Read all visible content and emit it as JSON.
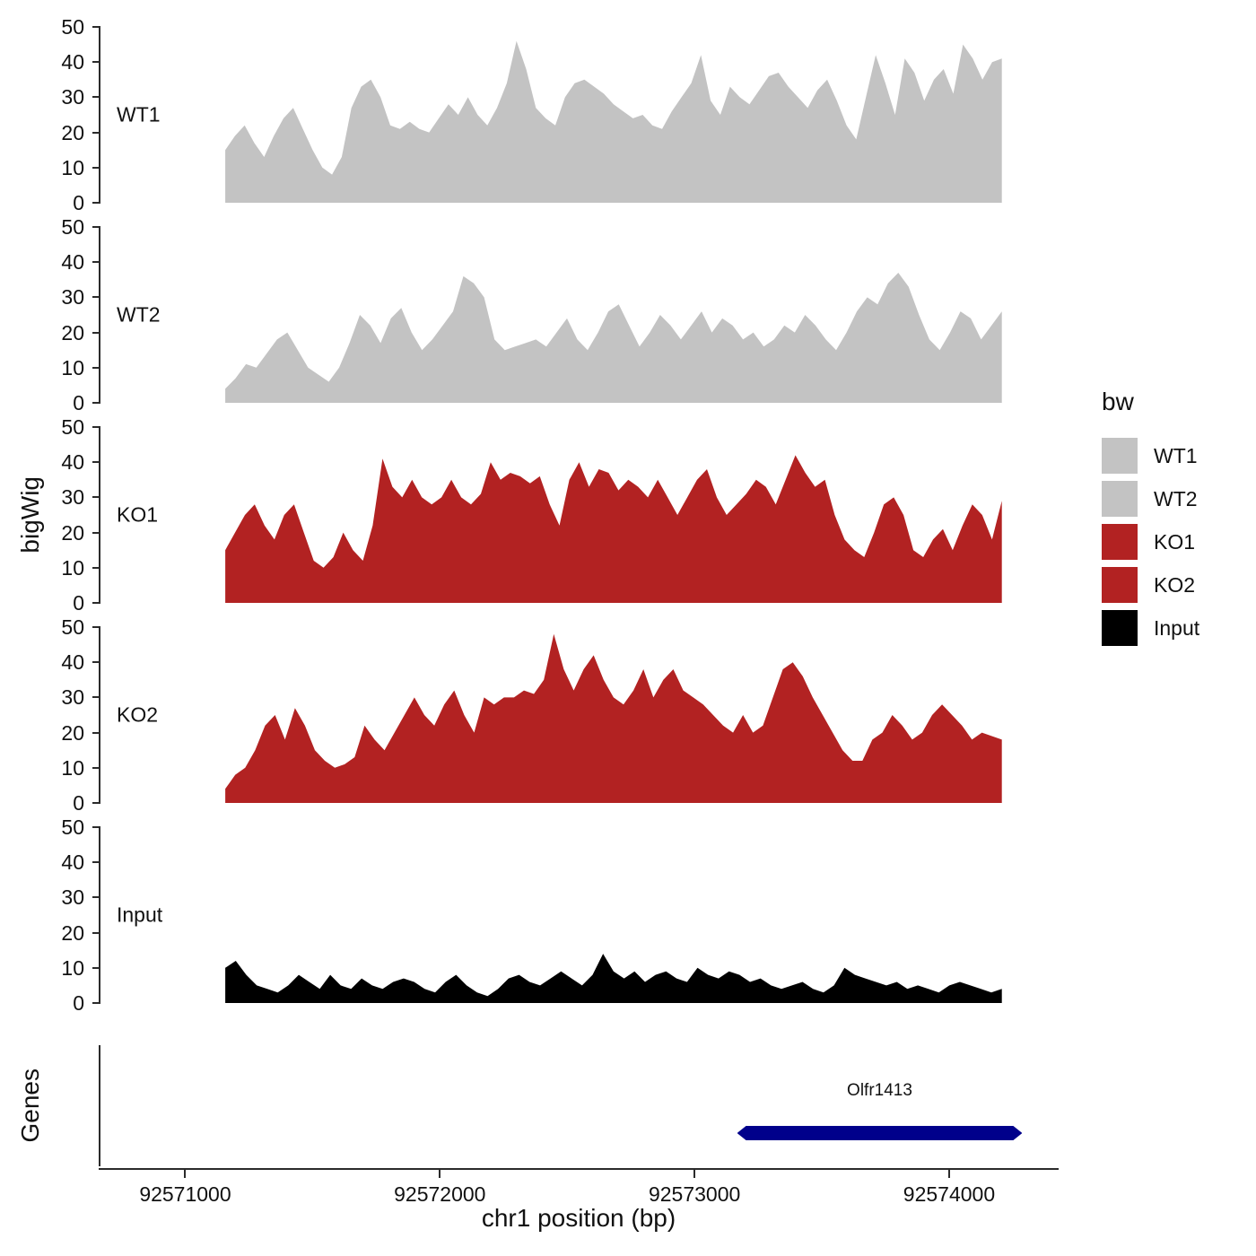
{
  "chart_data": {
    "type": "area",
    "title": "",
    "xlabel": "chr1 position (bp)",
    "ylabel": "bigWig",
    "genes_axis_label": "Genes",
    "y_max": 50,
    "y_ticks": [
      0,
      10,
      20,
      30,
      40,
      50
    ],
    "x_domain": [
      92570660,
      92574430
    ],
    "x_ticks": [
      {
        "bp": 92571000,
        "label": "92571000"
      },
      {
        "bp": 92572000,
        "label": "92572000"
      },
      {
        "bp": 92573000,
        "label": "92573000"
      },
      {
        "bp": 92574000,
        "label": "92574000"
      }
    ],
    "legend": {
      "title": "bw",
      "entries": [
        {
          "label": "WT1",
          "color": "#c3c3c3"
        },
        {
          "label": "WT2",
          "color": "#c3c3c3"
        },
        {
          "label": "KO1",
          "color": "#b22222"
        },
        {
          "label": "KO2",
          "color": "#b22222"
        },
        {
          "label": "Input",
          "color": "#000000"
        }
      ]
    },
    "tracks": [
      {
        "name": "WT1",
        "color": "#c3c3c3",
        "bp_start": 92571150,
        "bp_end": 92574200,
        "values": [
          15,
          19,
          22,
          17,
          13,
          19,
          24,
          27,
          21,
          15,
          10,
          8,
          13,
          27,
          33,
          35,
          30,
          22,
          21,
          23,
          21,
          20,
          24,
          28,
          25,
          30,
          25,
          22,
          27,
          34,
          46,
          38,
          27,
          24,
          22,
          30,
          34,
          35,
          33,
          31,
          28,
          26,
          24,
          25,
          22,
          21,
          26,
          30,
          34,
          42,
          29,
          25,
          33,
          30,
          28,
          32,
          36,
          37,
          33,
          30,
          27,
          32,
          35,
          29,
          22,
          18,
          30,
          42,
          34,
          25,
          41,
          37,
          29,
          35,
          38,
          31,
          45,
          41,
          35,
          40,
          41
        ]
      },
      {
        "name": "WT2",
        "color": "#c3c3c3",
        "bp_start": 92571150,
        "bp_end": 92574200,
        "values": [
          4,
          7,
          11,
          10,
          14,
          18,
          20,
          15,
          10,
          8,
          6,
          10,
          17,
          25,
          22,
          17,
          24,
          27,
          20,
          15,
          18,
          22,
          26,
          36,
          34,
          30,
          18,
          15,
          16,
          17,
          18,
          16,
          20,
          24,
          18,
          15,
          20,
          26,
          28,
          22,
          16,
          20,
          25,
          22,
          18,
          22,
          26,
          20,
          24,
          22,
          18,
          20,
          16,
          18,
          22,
          20,
          25,
          22,
          18,
          15,
          20,
          26,
          30,
          28,
          34,
          37,
          33,
          25,
          18,
          15,
          20,
          26,
          24,
          18,
          22,
          26
        ]
      },
      {
        "name": "KO1",
        "color": "#b22222",
        "bp_start": 92571150,
        "bp_end": 92574200,
        "values": [
          15,
          20,
          25,
          28,
          22,
          18,
          25,
          28,
          20,
          12,
          10,
          13,
          20,
          15,
          12,
          22,
          41,
          33,
          30,
          35,
          30,
          28,
          30,
          35,
          30,
          28,
          31,
          40,
          35,
          37,
          36,
          34,
          36,
          28,
          22,
          35,
          40,
          33,
          38,
          37,
          32,
          35,
          33,
          30,
          35,
          30,
          25,
          30,
          35,
          38,
          30,
          25,
          28,
          31,
          35,
          33,
          28,
          35,
          42,
          37,
          33,
          35,
          25,
          18,
          15,
          13,
          20,
          28,
          30,
          25,
          15,
          13,
          18,
          21,
          15,
          22,
          28,
          25,
          18,
          29
        ]
      },
      {
        "name": "KO2",
        "color": "#b22222",
        "bp_start": 92571150,
        "bp_end": 92574200,
        "values": [
          4,
          8,
          10,
          15,
          22,
          25,
          18,
          27,
          22,
          15,
          12,
          10,
          11,
          13,
          22,
          18,
          15,
          20,
          25,
          30,
          25,
          22,
          28,
          32,
          25,
          20,
          30,
          28,
          30,
          30,
          32,
          31,
          35,
          48,
          38,
          32,
          38,
          42,
          35,
          30,
          28,
          32,
          38,
          30,
          35,
          38,
          32,
          30,
          28,
          25,
          22,
          20,
          25,
          20,
          22,
          30,
          38,
          40,
          36,
          30,
          25,
          20,
          15,
          12,
          12,
          18,
          20,
          25,
          22,
          18,
          20,
          25,
          28,
          25,
          22,
          18,
          20,
          19,
          18
        ]
      },
      {
        "name": "Input",
        "color": "#000000",
        "bp_start": 92571150,
        "bp_end": 92574200,
        "values": [
          10,
          12,
          8,
          5,
          4,
          3,
          5,
          8,
          6,
          4,
          8,
          5,
          4,
          7,
          5,
          4,
          6,
          7,
          6,
          4,
          3,
          6,
          8,
          5,
          3,
          2,
          4,
          7,
          8,
          6,
          5,
          7,
          9,
          7,
          5,
          8,
          14,
          9,
          7,
          9,
          6,
          8,
          9,
          7,
          6,
          10,
          8,
          7,
          9,
          8,
          6,
          7,
          5,
          4,
          5,
          6,
          4,
          3,
          5,
          10,
          8,
          7,
          6,
          5,
          6,
          4,
          5,
          4,
          3,
          5,
          6,
          5,
          4,
          3,
          4
        ]
      }
    ],
    "gene": {
      "name": "Olfr1413",
      "bp_start": 92573160,
      "bp_end": 92574280,
      "color": "#00008b"
    }
  }
}
